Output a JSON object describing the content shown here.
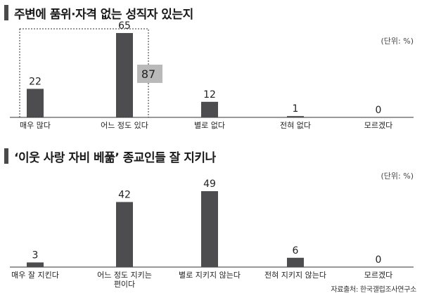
{
  "charts": [
    {
      "title": "주변에 품위·자격 없는 성직자 있는지",
      "unit": "(단위: %)",
      "badge_value": "87",
      "chart_data": {
        "type": "bar",
        "categories": [
          "매우 많다",
          "어느 정도 있다",
          "별로 없다",
          "전혀 없다",
          "모르겠다"
        ],
        "values": [
          22,
          65,
          12,
          1,
          0
        ],
        "value_labels": [
          "22",
          "65",
          "12",
          "1",
          "0"
        ],
        "ylim": [
          0,
          70
        ],
        "grouped_sum": {
          "categories": [
            0,
            1
          ],
          "value": 87
        }
      }
    },
    {
      "title": "‘이웃 사랑 자비 베풂’ 종교인들 잘 지키나",
      "unit": "(단위: %)",
      "source": "자료출처: 한국갤럽조사연구소",
      "chart_data": {
        "type": "bar",
        "categories": [
          [
            "매우 잘 지킨다"
          ],
          [
            "어느 정도 지키는",
            "편이다"
          ],
          [
            "별로 지키지 않는다"
          ],
          [
            "전혀 지키지 않는다"
          ],
          [
            "모르겠다"
          ]
        ],
        "values": [
          3,
          42,
          49,
          6,
          0
        ],
        "value_labels": [
          "3",
          "42",
          "49",
          "6",
          "0"
        ],
        "ylim": [
          0,
          53
        ]
      }
    }
  ],
  "colors": {
    "bar": "#4d4d4f",
    "badge_bg": "#b9b9b9",
    "axis": "#333333",
    "title_bar": "#4a4a4a"
  }
}
